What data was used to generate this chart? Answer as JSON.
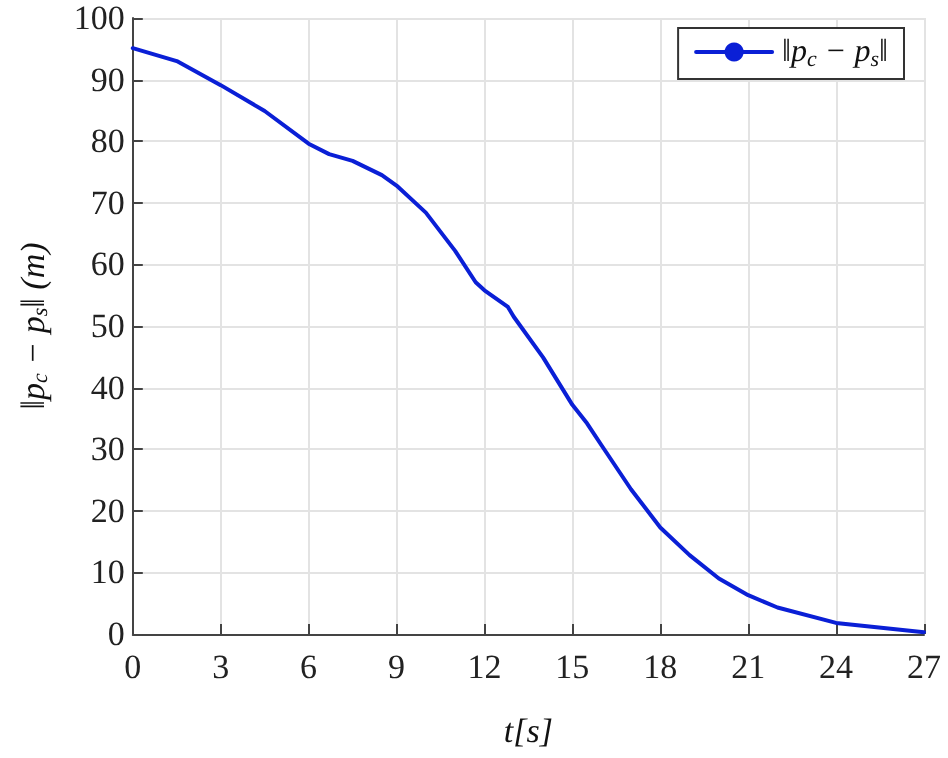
{
  "chart_data": {
    "type": "line",
    "xlabel": "t[s]",
    "ylabel": "‖p$_{c}$ − p$_{s}$‖ (m)",
    "x": [
      0,
      1.5,
      3,
      4.5,
      6,
      6.7,
      7.5,
      8.5,
      9,
      10,
      11,
      11.7,
      12,
      12.8,
      13,
      14,
      15,
      15.5,
      16,
      17,
      18,
      19,
      20,
      21,
      22,
      24,
      27
    ],
    "series": [
      {
        "name": "‖p$_{c}$ − p$_{s}$‖",
        "color": "#0a1fd6",
        "values": [
          95.1,
          93,
          89.1,
          84.9,
          79.6,
          77.9,
          76.8,
          74.5,
          72.8,
          68.4,
          62.2,
          57.1,
          55.8,
          53.1,
          51.5,
          44.9,
          37.2,
          34.2,
          30.6,
          23.5,
          17.3,
          12.8,
          9.0,
          6.3,
          4.3,
          1.8,
          0.3
        ]
      }
    ],
    "xlim": [
      0,
      27
    ],
    "xticks": [
      0,
      3,
      6,
      9,
      12,
      15,
      18,
      21,
      24,
      27
    ],
    "ylim": [
      0,
      100
    ],
    "yticks": [
      0,
      10,
      20,
      30,
      40,
      50,
      60,
      70,
      80,
      90,
      100
    ],
    "grid": true,
    "legend": "top right",
    "marker": "none",
    "line_style": "solid"
  }
}
